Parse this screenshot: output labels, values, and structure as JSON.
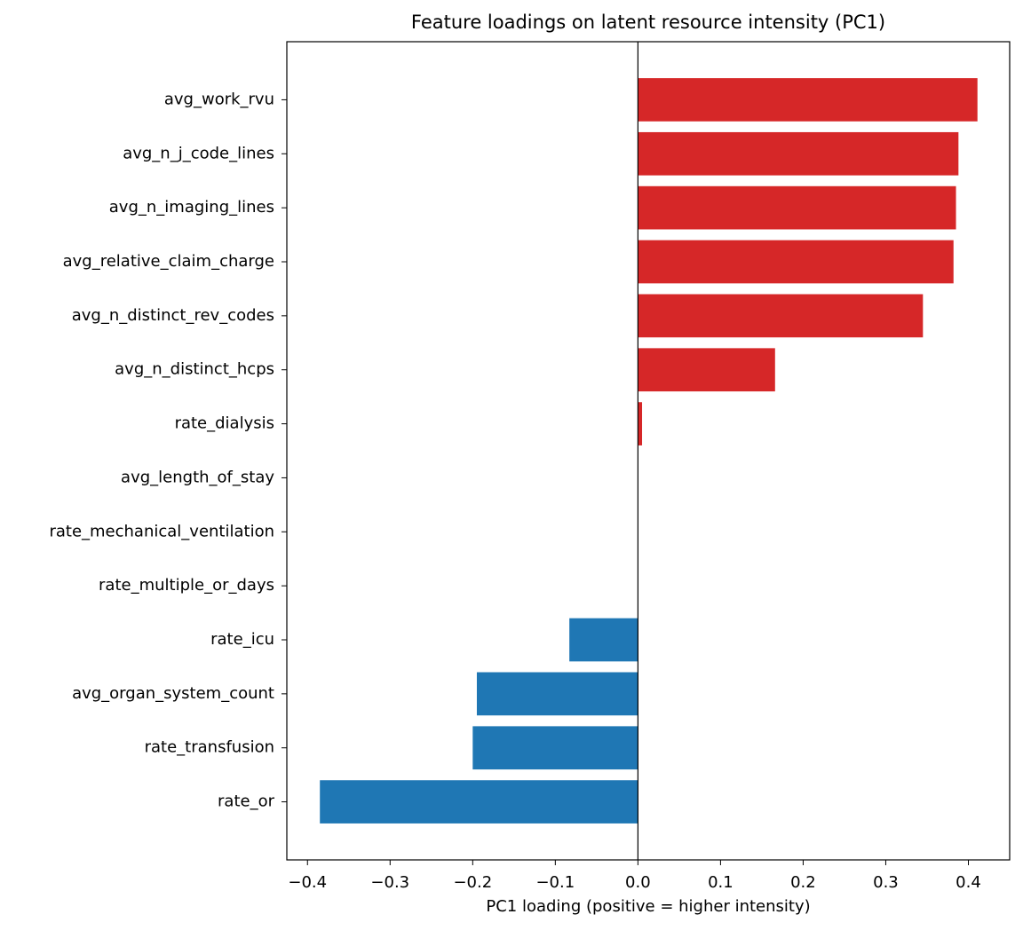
{
  "chart_data": {
    "type": "barh",
    "title": "Feature loadings on latent resource intensity (PC1)",
    "x_label": "PC1 loading (positive = higher intensity)",
    "categories": [
      "avg_work_rvu",
      "avg_n_j_code_lines",
      "avg_n_imaging_lines",
      "avg_relative_claim_charge",
      "avg_n_distinct_rev_codes",
      "avg_n_distinct_hcps",
      "rate_dialysis",
      "avg_length_of_stay",
      "rate_mechanical_ventilation",
      "rate_multiple_or_days",
      "rate_icu",
      "avg_organ_system_count",
      "rate_transfusion",
      "rate_or"
    ],
    "values": [
      0.411,
      0.388,
      0.385,
      0.382,
      0.345,
      0.166,
      0.005,
      0,
      0,
      0,
      -0.083,
      -0.195,
      -0.2,
      -0.385
    ],
    "positive_color": "#d62728",
    "negative_color": "#1f77b4",
    "xlim": [
      -0.425,
      0.45
    ],
    "xticks": [
      {
        "value": -0.4,
        "label": "−0.4"
      },
      {
        "value": -0.3,
        "label": "−0.3"
      },
      {
        "value": -0.2,
        "label": "−0.2"
      },
      {
        "value": -0.1,
        "label": "−0.1"
      },
      {
        "value": 0,
        "label": "0.0"
      },
      {
        "value": 0.1,
        "label": "0.1"
      },
      {
        "value": 0.2,
        "label": "0.2"
      },
      {
        "value": 0.3,
        "label": "0.3"
      },
      {
        "value": 0.4,
        "label": "0.4"
      }
    ],
    "zero_line": true,
    "grid": false
  }
}
